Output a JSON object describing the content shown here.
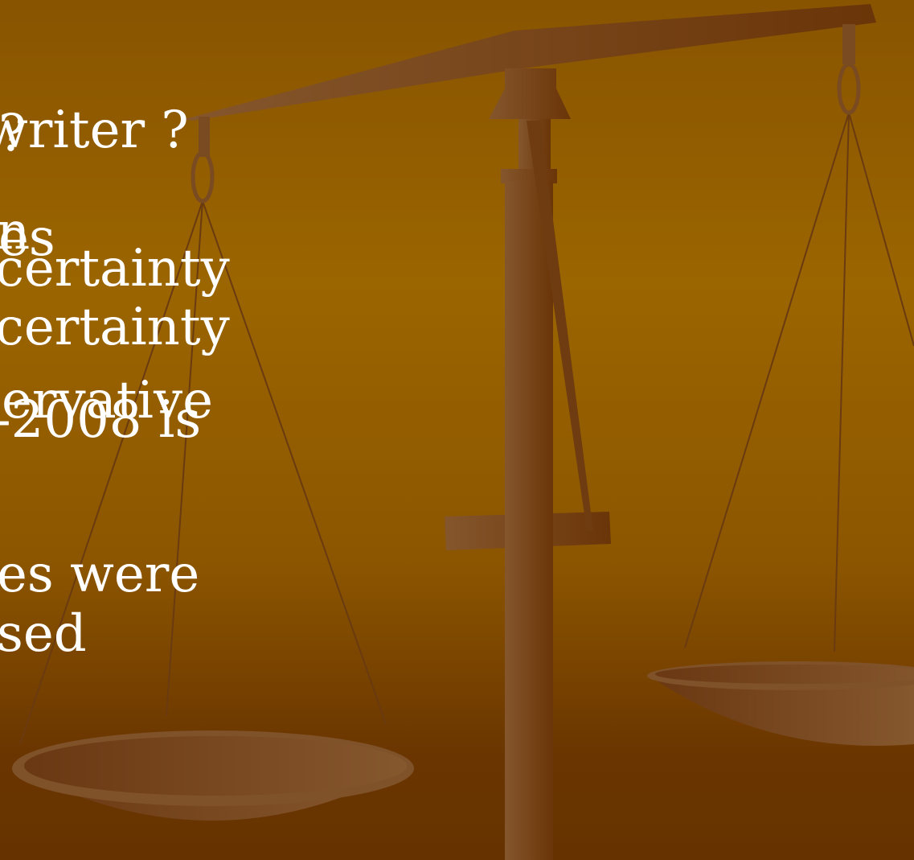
{
  "slide": {
    "lines": [
      "?",
      "writer ?",
      "n",
      "es",
      "certainty",
      "certainty",
      "ervative",
      "-2008 is",
      "es were",
      "sed"
    ]
  }
}
